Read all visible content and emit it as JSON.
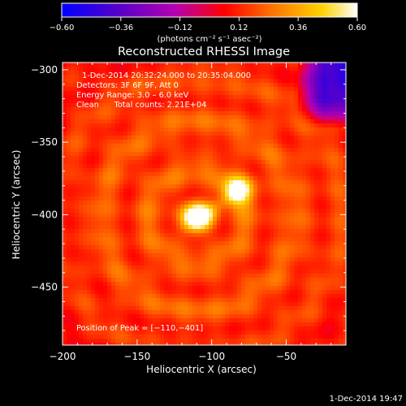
{
  "colorbar": {
    "ticks": [
      "-0.60",
      "-0.36",
      "-0.12",
      "0.12",
      "0.36",
      "0.60"
    ],
    "tick_values": [
      -0.6,
      -0.36,
      -0.12,
      0.12,
      0.36,
      0.6
    ],
    "range": [
      -0.6,
      0.6
    ],
    "unit_label": "(photons cm⁻² s⁻¹ asec⁻²)",
    "colormap": [
      "#0000ff",
      "#5a00c8",
      "#b400b4",
      "#ff0000",
      "#ff7800",
      "#ffd200",
      "#ffffff"
    ]
  },
  "chart_data": {
    "type": "heatmap",
    "title": "Reconstructed RHESSI Image",
    "xlabel": "Heliocentric X (arcsec)",
    "ylabel": "Heliocentric Y (arcsec)",
    "xlim": [
      -200,
      -10
    ],
    "ylim": [
      -490,
      -295
    ],
    "x_ticks": [
      -200,
      -150,
      -100,
      -50
    ],
    "y_ticks": [
      -300,
      -350,
      -400,
      -450
    ],
    "x_tick_labels": [
      "−200",
      "−150",
      "−100",
      "−50"
    ],
    "y_tick_labels": [
      "−300",
      "−350",
      "−400",
      "−450"
    ],
    "sources": [
      {
        "x": -110,
        "y": -401,
        "peak": 0.6
      },
      {
        "x": -83,
        "y": -383,
        "peak": 0.45
      }
    ],
    "annotations": [
      "1-Dec-2014 20:32:24.000 to 20:35:04.000",
      "Detectors: 3F 6F 9F, Att 0",
      "Energy Range: 3.0 – 6.0 keV",
      "Clean      Total counts: 2.21E+04",
      "Position of Peak = [−110,−401]"
    ],
    "grid": false
  },
  "footer": {
    "timestamp": "1-Dec-2014 19:47"
  }
}
